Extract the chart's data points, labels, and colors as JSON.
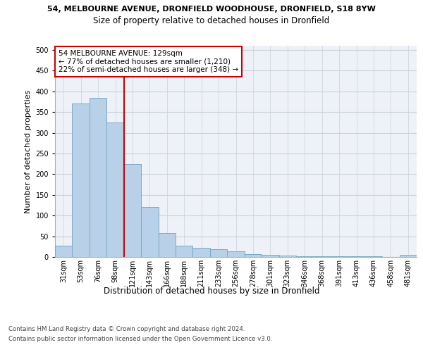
{
  "title_line1": "54, MELBOURNE AVENUE, DRONFIELD WOODHOUSE, DRONFIELD, S18 8YW",
  "title_line2": "Size of property relative to detached houses in Dronfield",
  "xlabel": "Distribution of detached houses by size in Dronfield",
  "ylabel": "Number of detached properties",
  "categories": [
    "31sqm",
    "53sqm",
    "76sqm",
    "98sqm",
    "121sqm",
    "143sqm",
    "166sqm",
    "188sqm",
    "211sqm",
    "233sqm",
    "256sqm",
    "278sqm",
    "301sqm",
    "323sqm",
    "346sqm",
    "368sqm",
    "391sqm",
    "413sqm",
    "436sqm",
    "458sqm",
    "481sqm"
  ],
  "values": [
    28,
    370,
    385,
    325,
    225,
    120,
    58,
    28,
    22,
    18,
    14,
    7,
    5,
    4,
    2,
    1,
    1,
    1,
    1,
    0,
    5
  ],
  "bar_color": "#b8d0e8",
  "bar_edge_color": "#7aaac8",
  "vline_color": "#cc0000",
  "vline_x": 3.5,
  "annotation_text": "54 MELBOURNE AVENUE: 129sqm\n← 77% of detached houses are smaller (1,210)\n22% of semi-detached houses are larger (348) →",
  "annotation_box_color": "white",
  "annotation_box_edge": "#cc0000",
  "ylim": [
    0,
    510
  ],
  "yticks": [
    0,
    50,
    100,
    150,
    200,
    250,
    300,
    350,
    400,
    450,
    500
  ],
  "footer1": "Contains HM Land Registry data © Crown copyright and database right 2024.",
  "footer2": "Contains public sector information licensed under the Open Government Licence v3.0.",
  "bg_color": "#eef2f8",
  "grid_color": "#c8d0dc",
  "title1_fontsize": 8.0,
  "title2_fontsize": 8.5,
  "ylabel_fontsize": 8.0,
  "xlabel_fontsize": 8.5,
  "tick_fontsize": 7.0,
  "footer_fontsize": 6.2
}
